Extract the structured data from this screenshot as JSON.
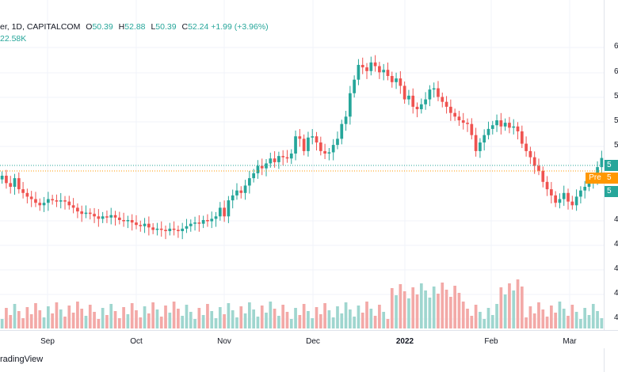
{
  "legend": {
    "symbol_partial": "er, 1D, CAPITALCOM",
    "open_label": "O",
    "open": "50.39",
    "high_label": "H",
    "high": "52.88",
    "low_label": "L",
    "low": "50.39",
    "close_label": "C",
    "close": "52.24",
    "change": "+1.99 (+3.96%)",
    "volume_partial": "22.58K"
  },
  "price_axis": {
    "ticks": [
      "6",
      "6",
      "5",
      "5",
      "5",
      "4",
      "4",
      "4",
      "4",
      "4"
    ],
    "badges": [
      {
        "text": "5",
        "color": "#26a69a"
      },
      {
        "text": "5",
        "color": "#ff9800"
      },
      {
        "text": "5",
        "color": "#26a69a"
      }
    ],
    "pre_label": "Pre"
  },
  "time_axis": {
    "labels": [
      "Sep",
      "Oct",
      "Nov",
      "Dec",
      "2022",
      "Feb",
      "Mar"
    ]
  },
  "footer": {
    "brand_partial": "radingView"
  },
  "colors": {
    "up": "#26a69a",
    "down": "#ef5350",
    "up_volume": "#9fd6cf",
    "down_volume": "#f3a9a7",
    "pre": "#ff9800"
  },
  "chart_data": {
    "type": "candlestick",
    "interval": "1D",
    "source": "CAPITALCOM",
    "x_labels": [
      "Sep",
      "Oct",
      "Nov",
      "Dec",
      "2022",
      "Feb",
      "Mar"
    ],
    "series_close": [
      50.8,
      50.2,
      49.9,
      50.6,
      49.7,
      49.4,
      49.1,
      48.9,
      48.6,
      48.4,
      48.6,
      48.9,
      48.8,
      48.7,
      48.8,
      48.7,
      48.4,
      48.2,
      47.9,
      47.7,
      47.8,
      47.7,
      47.5,
      47.3,
      47.5,
      47.4,
      47.6,
      47.4,
      47.2,
      47.1,
      47.2,
      47.0,
      46.8,
      46.7,
      46.9,
      46.6,
      46.4,
      46.5,
      46.4,
      46.3,
      46.5,
      46.4,
      46.3,
      46.5,
      46.7,
      46.9,
      47.0,
      46.9,
      47.2,
      47.1,
      47.3,
      47.5,
      48.2,
      47.5,
      48.8,
      49.2,
      49.6,
      49.4,
      50.0,
      50.6,
      51.0,
      51.6,
      51.4,
      51.8,
      52.2,
      51.9,
      52.4,
      52.3,
      52.2,
      52.6,
      54.0,
      53.8,
      52.8,
      53.9,
      54.0,
      53.5,
      52.8,
      52.6,
      52.7,
      53.3,
      53.8,
      55.0,
      55.6,
      57.5,
      58.6,
      59.8,
      59.6,
      59.3,
      60.0,
      59.7,
      59.2,
      59.4,
      58.9,
      58.4,
      58.7,
      58.1,
      57.0,
      57.3,
      56.4,
      56.2,
      56.6,
      57.0,
      57.8,
      57.9,
      57.2,
      56.8,
      56.4,
      55.9,
      55.6,
      55.3,
      55.1,
      55.0,
      54.1,
      52.8,
      53.5,
      54.1,
      54.6,
      54.9,
      55.3,
      54.8,
      55.1,
      54.7,
      54.8,
      54.4,
      53.4,
      52.8,
      52.3,
      51.6,
      51.2,
      50.3,
      49.7,
      49.2,
      48.6,
      48.9,
      49.4,
      48.7,
      48.4,
      49.1,
      49.6,
      49.9,
      50.2,
      50.6,
      51.5,
      52.24
    ],
    "volume_up_ratio": 0.5,
    "price_line_label": "Pre"
  }
}
